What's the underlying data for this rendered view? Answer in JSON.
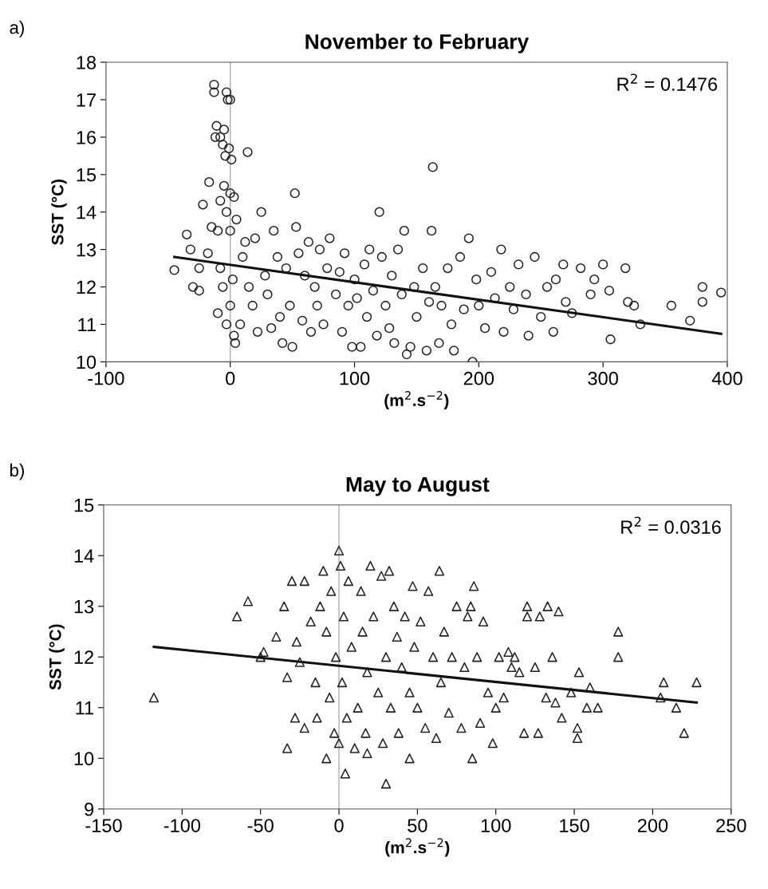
{
  "chart_data": [
    {
      "type": "scatter",
      "title": "November to February",
      "xlabel": "(m$^{2}$.s$^{−2}$)",
      "ylabel": "SST (°C)",
      "annotations": [
        "a)",
        "R$^{2}$ = 0.1476"
      ],
      "xlim": [
        -100,
        400
      ],
      "xticks": [
        -100,
        0,
        100,
        200,
        300,
        400
      ],
      "ylim": [
        10,
        18
      ],
      "yticks": [
        10,
        11,
        12,
        13,
        14,
        15,
        16,
        17,
        18
      ],
      "grid": false,
      "legend": false,
      "ref_lines": [
        {
          "axis": "x",
          "value": 0,
          "color": "#b0b0b0"
        }
      ],
      "series": [
        {
          "marker": "circle",
          "color": "#222222",
          "x": [
            -45,
            -35,
            -32,
            -30,
            -25,
            -25,
            -22,
            -18,
            -17,
            -15,
            -13,
            -13,
            -12,
            -11,
            -8,
            -6,
            -5,
            -4,
            -3,
            -2,
            0,
            -1,
            1,
            -8,
            -5,
            0,
            3,
            -3,
            0,
            5,
            -10,
            -8,
            -6,
            -10,
            -3,
            0,
            2,
            3,
            4,
            8,
            10,
            12,
            14,
            15,
            18,
            20,
            22,
            25,
            28,
            30,
            33,
            35,
            38,
            40,
            42,
            45,
            48,
            50,
            52,
            53,
            55,
            58,
            60,
            63,
            65,
            68,
            70,
            72,
            75,
            78,
            80,
            85,
            88,
            90,
            92,
            95,
            98,
            100,
            102,
            105,
            108,
            110,
            112,
            115,
            118,
            120,
            122,
            125,
            128,
            130,
            132,
            135,
            138,
            140,
            142,
            145,
            148,
            150,
            155,
            158,
            160,
            162,
            163,
            165,
            168,
            170,
            175,
            178,
            180,
            185,
            188,
            192,
            195,
            198,
            200,
            205,
            210,
            213,
            218,
            220,
            225,
            228,
            232,
            238,
            240,
            245,
            250,
            255,
            260,
            262,
            268,
            270,
            275,
            282,
            290,
            293,
            300,
            305,
            306,
            318,
            320,
            325,
            330,
            355,
            370,
            380,
            380,
            395
          ],
          "values": [
            12.45,
            13.4,
            13,
            12,
            11.9,
            12.5,
            14.2,
            12.9,
            14.8,
            13.6,
            17.4,
            17.2,
            16,
            16.3,
            16,
            15.8,
            16.2,
            15.5,
            17.2,
            17,
            17,
            15.7,
            15.4,
            14.3,
            14.7,
            14.5,
            14.4,
            14,
            13.5,
            13.8,
            13.5,
            12.5,
            12,
            11.3,
            11,
            11.5,
            12.2,
            10.7,
            10.5,
            11,
            12.8,
            13.2,
            15.6,
            12,
            11.5,
            13.3,
            10.8,
            14,
            12.3,
            11.8,
            10.9,
            13.5,
            12.8,
            11.2,
            10.5,
            12.5,
            11.5,
            10.4,
            14.5,
            13.6,
            12.9,
            11.1,
            12.3,
            13.2,
            10.8,
            12,
            11.5,
            13,
            11,
            12.5,
            13.3,
            11.8,
            12.4,
            10.8,
            12.9,
            11.5,
            10.4,
            12.2,
            11.7,
            10.4,
            12.6,
            11.2,
            13,
            11.9,
            10.7,
            14,
            12.8,
            11.5,
            10.9,
            12.3,
            10.5,
            13,
            11.8,
            13.5,
            10.2,
            10.4,
            12,
            11.2,
            12.5,
            10.3,
            11.6,
            13.5,
            15.2,
            12,
            10.5,
            11.5,
            12.5,
            11,
            10.3,
            12.8,
            11.4,
            13.3,
            10,
            12.2,
            11.5,
            10.9,
            12.4,
            11.7,
            13,
            10.8,
            12,
            11.4,
            12.6,
            11.8,
            10.7,
            12.8,
            11.2,
            12,
            10.8,
            12.2,
            12.6,
            11.6,
            11.3,
            12.5,
            11.8,
            12.2,
            12.6,
            11.9,
            10.6,
            12.5,
            11.6,
            11.5,
            11,
            11.5,
            11.1,
            12,
            11.6,
            11.85
          ]
        },
        {
          "type": "line",
          "marker": "none",
          "line_style": "solid",
          "color": "#111111",
          "x": [
            -45,
            395
          ],
          "values": [
            12.8,
            10.75
          ]
        }
      ]
    },
    {
      "type": "scatter",
      "title": "May to August",
      "xlabel": "(m$^{2}$.s$^{−2}$)",
      "ylabel": "SST (°C)",
      "annotations": [
        "b)",
        "R$^{2}$ = 0.0316"
      ],
      "xlim": [
        -150,
        250
      ],
      "xticks": [
        -150,
        -100,
        -50,
        0,
        50,
        100,
        150,
        200,
        250
      ],
      "ylim": [
        9,
        15
      ],
      "yticks": [
        9,
        10,
        11,
        12,
        13,
        14,
        15
      ],
      "grid": false,
      "legend": false,
      "ref_lines": [
        {
          "axis": "x",
          "value": 0,
          "color": "#b0b0b0"
        }
      ],
      "series": [
        {
          "marker": "triangle",
          "color": "#222222",
          "x": [
            -118,
            -65,
            -58,
            -50,
            -48,
            -40,
            -35,
            -33,
            -33,
            -30,
            -28,
            -27,
            -25,
            -22,
            -22,
            -18,
            -15,
            -14,
            -12,
            -10,
            -8,
            -8,
            -6,
            -5,
            -3,
            -2,
            0,
            0,
            1,
            2,
            3,
            4,
            5,
            6,
            8,
            10,
            12,
            14,
            15,
            17,
            18,
            20,
            18,
            22,
            25,
            27,
            28,
            30,
            30,
            32,
            33,
            35,
            37,
            38,
            40,
            42,
            45,
            45,
            47,
            48,
            50,
            52,
            55,
            57,
            60,
            62,
            64,
            65,
            67,
            70,
            72,
            75,
            78,
            80,
            82,
            84,
            85,
            86,
            88,
            90,
            92,
            95,
            98,
            100,
            102,
            105,
            108,
            110,
            112,
            115,
            118,
            120,
            120,
            125,
            127,
            128,
            132,
            133,
            136,
            138,
            140,
            142,
            148,
            152,
            152,
            153,
            158,
            160,
            165,
            178,
            178,
            205,
            207,
            215,
            220,
            228
          ],
          "values": [
            11.2,
            12.8,
            13.1,
            12,
            12.1,
            12.4,
            13,
            10.2,
            11.6,
            13.5,
            10.8,
            12.3,
            11.9,
            13.5,
            10.6,
            12.7,
            11.5,
            10.8,
            13,
            13.7,
            10,
            12.5,
            11.2,
            13.3,
            10.5,
            12,
            14.1,
            10.3,
            13.8,
            11.5,
            12.8,
            9.7,
            10.8,
            13.5,
            12.2,
            10.2,
            11,
            13.3,
            12.5,
            10.5,
            11.7,
            13.8,
            10.1,
            12.8,
            11.3,
            13.6,
            10.3,
            9.5,
            12,
            13.7,
            11,
            13,
            12.4,
            10.5,
            11.8,
            12.8,
            11.3,
            10,
            13.4,
            12.2,
            11,
            12.7,
            10.6,
            13.3,
            12,
            10.4,
            13.7,
            11.5,
            12.5,
            10.9,
            12,
            13,
            10.6,
            11.8,
            12.8,
            13,
            10,
            13.4,
            12,
            10.7,
            12.7,
            11.3,
            10.3,
            11,
            12,
            11.2,
            12.1,
            11.8,
            12,
            11.7,
            10.5,
            13,
            12.8,
            11.8,
            10.5,
            12.8,
            11.2,
            13,
            12,
            11.1,
            12.9,
            10.8,
            11.3,
            10.6,
            10.4,
            11.7,
            11,
            11.4,
            11,
            12.5,
            12,
            11.2,
            11.5,
            11,
            10.5,
            11.5
          ]
        },
        {
          "type": "line",
          "marker": "none",
          "line_style": "solid",
          "color": "#111111",
          "x": [
            -118,
            228
          ],
          "values": [
            12.2,
            11.1
          ]
        }
      ]
    }
  ]
}
